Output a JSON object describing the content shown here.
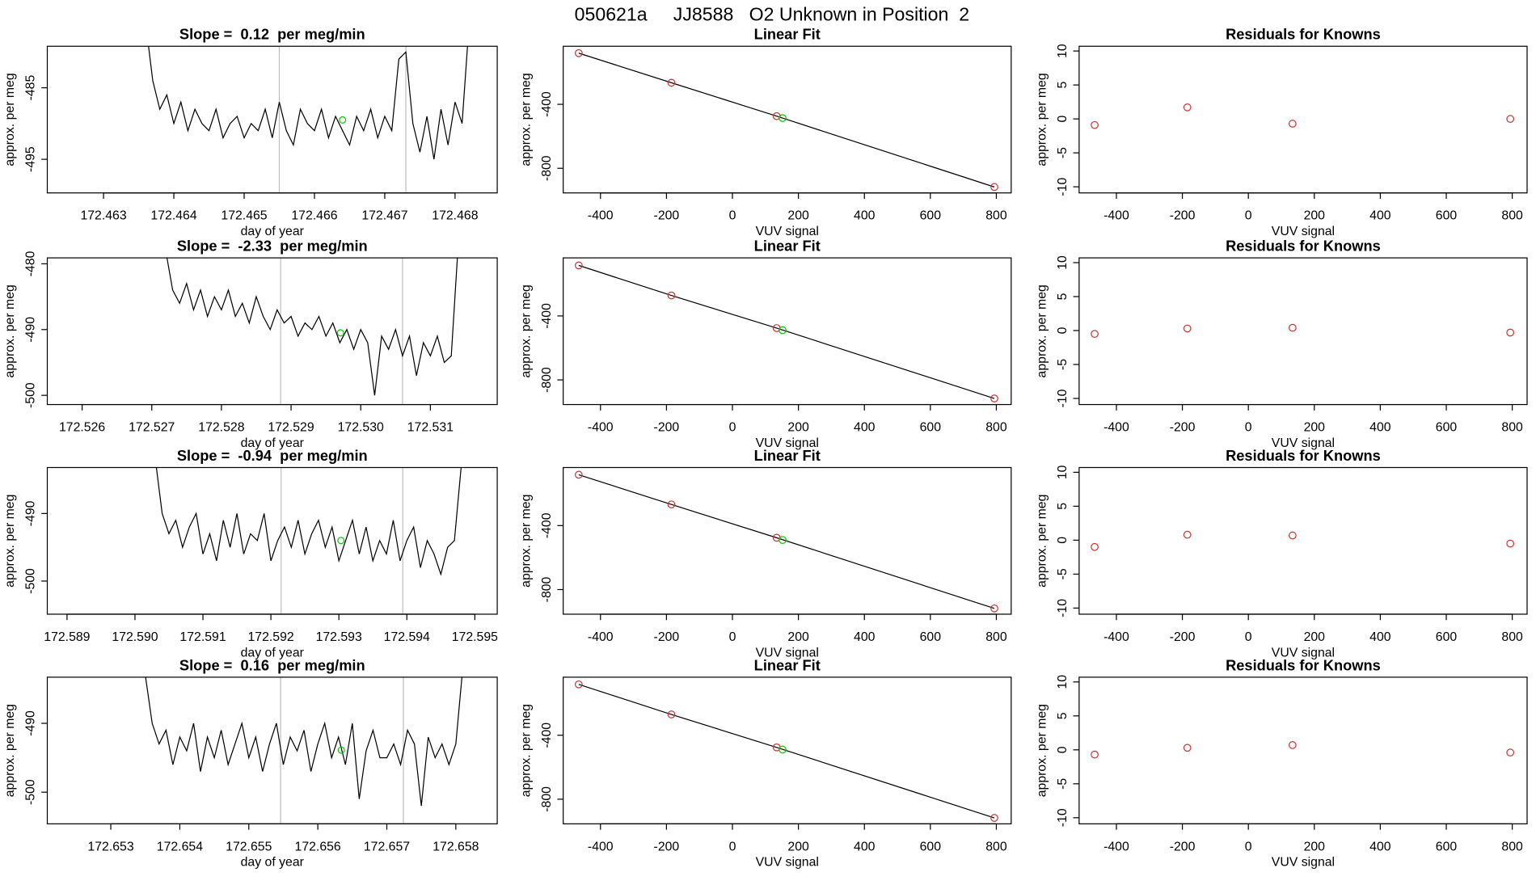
{
  "title": "050621a     JJ8588   O2 Unknown in Position  2",
  "chart_data": [
    {
      "type": "line",
      "title": "Slope =  0.12  per meg/min",
      "xlabel": "day of year",
      "ylabel": "approx. per meg",
      "x": [
        172.4636,
        172.4637,
        172.4638,
        172.4639,
        172.464,
        172.4641,
        172.4642,
        172.4643,
        172.4644,
        172.4645,
        172.4646,
        172.4647,
        172.4648,
        172.4649,
        172.465,
        172.4651,
        172.4652,
        172.4653,
        172.4654,
        172.4655,
        172.4656,
        172.4657,
        172.4658,
        172.4659,
        172.466,
        172.4661,
        172.4662,
        172.4663,
        172.4664,
        172.4665,
        172.4666,
        172.4667,
        172.4668,
        172.4669,
        172.467,
        172.4671,
        172.4672,
        172.4673,
        172.4674,
        172.4675,
        172.4676,
        172.4677,
        172.4678,
        172.4679,
        172.468,
        172.4681,
        172.4682
      ],
      "values": [
        -476,
        -484,
        -488,
        -486,
        -490,
        -487,
        -491,
        -488,
        -490,
        -491,
        -488,
        -492,
        -490,
        -489,
        -492,
        -490,
        -491,
        -488,
        -492,
        -487,
        -491,
        -493,
        -488,
        -490,
        -491,
        -488,
        -492,
        -489,
        -491,
        -493,
        -489,
        -491,
        -488,
        -492,
        -489,
        -491,
        -481,
        -480,
        -490,
        -494,
        -489,
        -495,
        -488,
        -493,
        -487,
        -490,
        -476
      ],
      "color": "#000000",
      "xlim": [
        172.4622,
        172.4686
      ],
      "ylim": [
        -499.7,
        -479.2
      ],
      "xticks": [
        172.463,
        172.464,
        172.465,
        172.466,
        172.467,
        172.468
      ],
      "yticks": [
        -485,
        -495
      ],
      "vlines": [
        172.4655,
        172.4673
      ],
      "vline_color": "#bebebe",
      "marker": {
        "x": 172.4664,
        "y": -489.5,
        "color": "#00cd00"
      }
    },
    {
      "type": "scatter",
      "title": "Linear Fit",
      "xlabel": "VUV signal",
      "ylabel": "approx. per meg",
      "x": [
        -466,
        -185,
        134,
        794
      ],
      "values": [
        -80,
        -265,
        -474,
        -917
      ],
      "color": "#cd3333",
      "line": true,
      "line_color": "#000000",
      "unknown": {
        "x": 152,
        "y": -486,
        "color": "#00cd00"
      },
      "xlim": [
        -513,
        845
      ],
      "ylim": [
        -954,
        -37
      ],
      "xticks": [
        -400,
        -200,
        0,
        200,
        400,
        600,
        800
      ],
      "yticks": [
        -400,
        -800
      ]
    },
    {
      "type": "scatter",
      "title": "Residuals for Knowns",
      "xlabel": "VUV signal",
      "ylabel": "approx. per meg",
      "x": [
        -466,
        -185,
        134,
        794
      ],
      "values": [
        -0.9,
        1.7,
        -0.7,
        0.0
      ],
      "color": "#cd3333",
      "xlim": [
        -513,
        845
      ],
      "ylim": [
        -10.9,
        10.7
      ],
      "xticks": [
        -400,
        -200,
        0,
        200,
        400,
        600,
        800
      ],
      "yticks": [
        -10,
        -5,
        0,
        5,
        10
      ]
    },
    {
      "type": "line",
      "title": "Slope =  -2.33  per meg/min",
      "xlabel": "day of year",
      "ylabel": "approx. per meg",
      "x": [
        172.5272,
        172.5273,
        172.5274,
        172.5275,
        172.5276,
        172.5277,
        172.5278,
        172.5279,
        172.528,
        172.5281,
        172.5282,
        172.5283,
        172.5284,
        172.5285,
        172.5286,
        172.5287,
        172.5288,
        172.5289,
        172.529,
        172.5291,
        172.5292,
        172.5293,
        172.5294,
        172.5295,
        172.5296,
        172.5297,
        172.5298,
        172.5299,
        172.53,
        172.5301,
        172.5302,
        172.5303,
        172.5304,
        172.5305,
        172.5306,
        172.5307,
        172.5308,
        172.5309,
        172.531,
        172.5311,
        172.5312,
        172.5313,
        172.5314
      ],
      "values": [
        -478,
        -484,
        -486,
        -483,
        -487,
        -484,
        -488,
        -485,
        -487,
        -484,
        -488,
        -486,
        -489,
        -485,
        -488,
        -490,
        -487,
        -489,
        -488,
        -491,
        -489,
        -490,
        -488,
        -491,
        -489,
        -492,
        -490,
        -493,
        -490,
        -492,
        -500,
        -491,
        -493,
        -490,
        -494,
        -491,
        -497,
        -492,
        -494,
        -491,
        -495,
        -494,
        -477
      ],
      "color": "#000000",
      "xlim": [
        172.5255,
        172.53196
      ],
      "ylim": [
        -501.4,
        -479.1
      ],
      "xticks": [
        172.526,
        172.527,
        172.528,
        172.529,
        {
          "value": 172.53,
          "label": "172.530"
        },
        172.531
      ],
      "yticks": [
        -480,
        -490,
        -500
      ],
      "vlines": [
        172.52885,
        172.5306
      ],
      "vline_color": "#bebebe",
      "marker": {
        "x": 172.52971,
        "y": -490.5,
        "color": "#00cd00"
      }
    },
    {
      "type": "scatter",
      "title": "Linear Fit",
      "xlabel": "VUV signal",
      "ylabel": "approx. per meg",
      "x": [
        -466,
        -185,
        134,
        794
      ],
      "values": [
        -84,
        -272,
        -476,
        -916
      ],
      "color": "#cd3333",
      "line": true,
      "line_color": "#000000",
      "unknown": {
        "x": 152,
        "y": -489,
        "color": "#00cd00"
      },
      "xlim": [
        -513,
        845
      ],
      "ylim": [
        -954,
        -37
      ],
      "xticks": [
        -400,
        -200,
        0,
        200,
        400,
        600,
        800
      ],
      "yticks": [
        -400,
        -800
      ]
    },
    {
      "type": "scatter",
      "title": "Residuals for Knowns",
      "xlabel": "VUV signal",
      "ylabel": "approx. per meg",
      "x": [
        -466,
        -185,
        134,
        794
      ],
      "values": [
        -0.5,
        0.3,
        0.4,
        -0.3
      ],
      "color": "#cd3333",
      "xlim": [
        -513,
        845
      ],
      "ylim": [
        -10.9,
        10.7
      ],
      "xticks": [
        -400,
        -200,
        0,
        200,
        400,
        600,
        800
      ],
      "yticks": [
        -10,
        -5,
        0,
        5,
        10
      ]
    },
    {
      "type": "line",
      "title": "Slope =  -0.94  per meg/min",
      "xlabel": "day of year",
      "ylabel": "approx. per meg",
      "x": [
        172.5903,
        172.5904,
        172.5905,
        172.5906,
        172.5907,
        172.5908,
        172.5909,
        172.591,
        172.5911,
        172.5912,
        172.5913,
        172.5914,
        172.5915,
        172.5916,
        172.5917,
        172.5918,
        172.5919,
        172.592,
        172.5921,
        172.5922,
        172.5923,
        172.5924,
        172.5925,
        172.5926,
        172.5927,
        172.5928,
        172.5929,
        172.593,
        172.5931,
        172.5932,
        172.5933,
        172.5934,
        172.5935,
        172.5936,
        172.5937,
        172.5938,
        172.5939,
        172.594,
        172.5941,
        172.5942,
        172.5943,
        172.5944,
        172.5945,
        172.5946,
        172.5947,
        172.5948
      ],
      "values": [
        -482,
        -490,
        -493,
        -491,
        -495,
        -492,
        -490,
        -496,
        -493,
        -497,
        -491,
        -495,
        -490,
        -496,
        -493,
        -494,
        -490,
        -497,
        -494,
        -492,
        -495,
        -491,
        -496,
        -493,
        -491,
        -495,
        -492,
        -497,
        -494,
        -491,
        -496,
        -492,
        -497,
        -494,
        -496,
        -491,
        -497,
        -494,
        -492,
        -498,
        -494,
        -496,
        -499,
        -495,
        -494,
        -483
      ],
      "color": "#000000",
      "xlim": [
        172.58871,
        172.59533
      ],
      "ylim": [
        -504.9,
        -483.2
      ],
      "xticks": [
        172.589,
        {
          "value": 172.59,
          "label": "172.590"
        },
        172.591,
        172.592,
        172.593,
        172.594,
        172.595
      ],
      "yticks": [
        -490,
        -500
      ],
      "vlines": [
        172.59215,
        172.59394
      ],
      "vline_color": "#bebebe",
      "marker": {
        "x": 172.59303,
        "y": -494,
        "color": "#00cd00"
      }
    },
    {
      "type": "scatter",
      "title": "Linear Fit",
      "xlabel": "VUV signal",
      "ylabel": "approx. per meg",
      "x": [
        -466,
        -185,
        134,
        794
      ],
      "values": [
        -82,
        -268,
        -476,
        -918
      ],
      "color": "#cd3333",
      "line": true,
      "line_color": "#000000",
      "unknown": {
        "x": 152,
        "y": -490,
        "color": "#00cd00"
      },
      "xlim": [
        -513,
        845
      ],
      "ylim": [
        -954,
        -37
      ],
      "xticks": [
        -400,
        -200,
        0,
        200,
        400,
        600,
        800
      ],
      "yticks": [
        -400,
        -800
      ]
    },
    {
      "type": "scatter",
      "title": "Residuals for Knowns",
      "xlabel": "VUV signal",
      "ylabel": "approx. per meg",
      "x": [
        -466,
        -185,
        134,
        794
      ],
      "values": [
        -1.0,
        0.8,
        0.7,
        -0.5
      ],
      "color": "#cd3333",
      "xlim": [
        -513,
        845
      ],
      "ylim": [
        -10.9,
        10.7
      ],
      "xticks": [
        -400,
        -200,
        0,
        200,
        400,
        600,
        800
      ],
      "yticks": [
        -10,
        -5,
        0,
        5,
        10
      ]
    },
    {
      "type": "line",
      "title": "Slope =  0.16  per meg/min",
      "xlabel": "day of year",
      "ylabel": "approx. per meg",
      "x": [
        172.6535,
        172.6536,
        172.6537,
        172.6538,
        172.6539,
        172.654,
        172.6541,
        172.6542,
        172.6543,
        172.6544,
        172.6545,
        172.6546,
        172.6547,
        172.6548,
        172.6549,
        172.655,
        172.6551,
        172.6552,
        172.6553,
        172.6554,
        172.6555,
        172.6556,
        172.6557,
        172.6558,
        172.6559,
        172.656,
        172.6561,
        172.6562,
        172.6563,
        172.6564,
        172.6565,
        172.6566,
        172.6567,
        172.6568,
        172.6569,
        172.657,
        172.6571,
        172.6572,
        172.6573,
        172.6574,
        172.6575,
        172.6576,
        172.6577,
        172.6578,
        172.6579,
        172.658,
        172.6581
      ],
      "values": [
        -483,
        -490,
        -493,
        -491,
        -496,
        -492,
        -494,
        -490,
        -497,
        -492,
        -495,
        -491,
        -496,
        -493,
        -490,
        -495,
        -492,
        -497,
        -493,
        -490,
        -496,
        -492,
        -494,
        -491,
        -497,
        -493,
        -490,
        -495,
        -492,
        -496,
        -490,
        -501,
        -494,
        -491,
        -495,
        -495,
        -493,
        -496,
        -491,
        -493,
        -502,
        -492,
        -495,
        -493,
        -496,
        -493,
        -482
      ],
      "color": "#000000",
      "xlim": [
        172.65208,
        172.6586
      ],
      "ylim": [
        -504.6,
        -483.3
      ],
      "xticks": [
        172.653,
        172.654,
        172.655,
        172.656,
        172.657,
        172.658
      ],
      "yticks": [
        -490,
        -500
      ],
      "vlines": [
        172.65546,
        172.65724
      ],
      "vline_color": "#bebebe",
      "marker": {
        "x": 172.65634,
        "y": -493.9,
        "color": "#00cd00"
      }
    },
    {
      "type": "scatter",
      "title": "Linear Fit",
      "xlabel": "VUV signal",
      "ylabel": "approx. per meg",
      "x": [
        -466,
        -185,
        134,
        794
      ],
      "values": [
        -82,
        -270,
        -476,
        -917
      ],
      "color": "#cd3333",
      "line": true,
      "line_color": "#000000",
      "unknown": {
        "x": 152,
        "y": -490,
        "color": "#00cd00"
      },
      "xlim": [
        -513,
        845
      ],
      "ylim": [
        -954,
        -37
      ],
      "xticks": [
        -400,
        -200,
        0,
        200,
        400,
        600,
        800
      ],
      "yticks": [
        -400,
        -800
      ]
    },
    {
      "type": "scatter",
      "title": "Residuals for Knowns",
      "xlabel": "VUV signal",
      "ylabel": "approx. per meg",
      "x": [
        -466,
        -185,
        134,
        794
      ],
      "values": [
        -0.7,
        0.3,
        0.7,
        -0.4
      ],
      "color": "#cd3333",
      "xlim": [
        -513,
        845
      ],
      "ylim": [
        -10.9,
        10.7
      ],
      "xticks": [
        -400,
        -200,
        0,
        200,
        400,
        600,
        800
      ],
      "yticks": [
        -10,
        -5,
        0,
        5,
        10
      ]
    }
  ]
}
